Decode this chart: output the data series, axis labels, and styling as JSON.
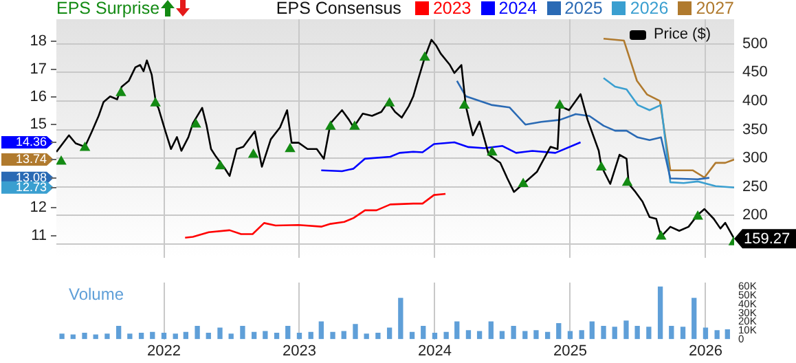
{
  "chart_data": [
    {
      "type": "line",
      "legend": "top",
      "legend_title": "EPS Consensus",
      "grid": true,
      "tick_labels": "y",
      "xlim": [
        "2021-03-17",
        "2026-03-19"
      ],
      "xticks": [
        "2022",
        "2023",
        "2024",
        "2025",
        "2026"
      ],
      "ylim": [
        10.2,
        18.8
      ],
      "yticks": [
        11,
        12,
        12.73,
        13.08,
        13.74,
        14.36,
        15,
        16,
        17,
        18
      ],
      "y2lim": [
        126,
        543
      ],
      "y2ticks": [
        {
          "value": 150,
          "label": null
        },
        200,
        250,
        300,
        350,
        400,
        450,
        500
      ],
      "series": [
        {
          "name": "EPS Surprise",
          "type": "scatter",
          "axis": "y2",
          "marker": "triangle",
          "color": "#138a13",
          "x": [
            "2021-03-30",
            "2021-06-02",
            "2021-09-07",
            "2021-12-09",
            "2022-03-28",
            "2022-06-02",
            "2022-08-30",
            "2022-12-07",
            "2023-03-26",
            "2023-05-30",
            "2023-09-01",
            "2023-12-05",
            "2024-03-21",
            "2024-06-04",
            "2024-08-27",
            "2024-12-04",
            "2025-03-26",
            "2025-06-04",
            "2025-09-03",
            "2025-12-11",
            "2026-03-18"
          ],
          "values": [
            294,
            318,
            414,
            396,
            359,
            286,
            306,
            316,
            355,
            355,
            396,
            476,
            392,
            310,
            255,
            392,
            284,
            257,
            163,
            198,
            153
          ]
        },
        {
          "name": "Price ($)",
          "axis": "y2",
          "color": "#000000",
          "x": [
            "2021-03-17",
            "2021-04-20",
            "2021-05-08",
            "2021-06-02",
            "2021-06-21",
            "2021-07-09",
            "2021-07-22",
            "2021-08-09",
            "2021-08-28",
            "2021-09-09",
            "2021-09-28",
            "2021-10-16",
            "2021-10-29",
            "2021-11-07",
            "2021-11-16",
            "2021-11-29",
            "2021-12-11",
            "2021-12-17",
            "2022-01-05",
            "2022-01-20",
            "2022-02-05",
            "2022-02-17",
            "2022-03-08",
            "2022-03-20",
            "2022-04-14",
            "2022-04-26",
            "2022-05-08",
            "2022-05-21",
            "2022-06-14",
            "2022-06-27",
            "2022-07-16",
            "2022-08-03",
            "2022-09-03",
            "2022-09-22",
            "2022-10-16",
            "2022-11-10",
            "2022-11-29",
            "2022-12-11",
            "2022-12-30",
            "2023-01-23",
            "2023-02-17",
            "2023-03-08",
            "2023-03-26",
            "2023-04-26",
            "2023-05-15",
            "2023-05-27",
            "2023-06-21",
            "2023-07-16",
            "2023-08-10",
            "2023-08-28",
            "2023-09-16",
            "2023-10-04",
            "2023-10-23",
            "2023-11-04",
            "2023-11-16",
            "2023-12-05",
            "2023-12-23",
            "2024-01-05",
            "2024-01-17",
            "2024-02-11",
            "2024-02-23",
            "2024-03-13",
            "2024-03-25",
            "2024-04-13",
            "2024-05-01",
            "2024-05-26",
            "2024-06-26",
            "2024-07-15",
            "2024-08-02",
            "2024-08-27",
            "2024-10-03",
            "2024-10-28",
            "2024-11-09",
            "2024-11-28",
            "2024-12-04",
            "2024-12-29",
            "2025-01-29",
            "2025-02-17",
            "2025-03-19",
            "2025-03-26",
            "2025-04-19",
            "2025-05-14",
            "2025-06-02",
            "2025-06-08",
            "2025-06-26",
            "2025-07-15",
            "2025-08-03",
            "2025-08-21",
            "2025-09-03",
            "2025-09-28",
            "2025-10-22",
            "2025-11-16",
            "2025-12-11",
            "2025-12-29",
            "2026-01-23",
            "2026-02-10",
            "2026-02-23",
            "2026-03-19"
          ],
          "values": [
            311,
            340,
            326,
            320,
            347,
            374,
            398,
            408,
            403,
            425,
            435,
            459,
            463,
            452,
            471,
            446,
            394,
            388,
            347,
            316,
            337,
            313,
            337,
            361,
            388,
            357,
            316,
            303,
            282,
            269,
            316,
            320,
            347,
            285,
            333,
            354,
            384,
            327,
            327,
            316,
            316,
            299,
            361,
            384,
            367,
            354,
            378,
            374,
            381,
            398,
            381,
            371,
            391,
            408,
            435,
            476,
            507,
            497,
            483,
            463,
            449,
            463,
            391,
            340,
            364,
            306,
            292,
            265,
            241,
            255,
            276,
            306,
            320,
            316,
            391,
            384,
            412,
            367,
            313,
            286,
            255,
            306,
            299,
            255,
            241,
            224,
            197,
            194,
            163,
            180,
            173,
            180,
            201,
            211,
            194,
            177,
            187,
            159.27
          ],
          "value_labels": [
            null,
            null,
            null,
            null,
            null,
            null,
            null,
            null,
            null,
            null,
            null,
            null,
            null,
            null,
            null,
            null,
            null,
            null,
            null,
            null,
            null,
            null,
            null,
            null,
            null,
            null,
            null,
            null,
            null,
            null,
            null,
            null,
            null,
            null,
            null,
            null,
            null,
            null,
            null,
            null,
            null,
            null,
            null,
            null,
            null,
            null,
            null,
            null,
            null,
            null,
            null,
            null,
            null,
            null,
            null,
            null,
            null,
            null,
            null,
            null,
            null,
            null,
            null,
            null,
            null,
            null,
            null,
            null,
            null,
            null,
            null,
            null,
            null,
            null,
            null,
            null,
            null,
            null,
            null,
            null,
            null,
            null,
            null,
            null,
            null,
            null,
            null,
            null,
            null,
            null,
            null,
            null,
            null,
            null,
            null,
            null,
            null,
            "159.27"
          ]
        },
        {
          "name": "2023",
          "color": "#ff0000",
          "x": [
            "2022-02-27",
            "2022-03-20",
            "2022-05-02",
            "2022-06-27",
            "2022-07-28",
            "2022-08-28",
            "2022-09-28",
            "2022-10-29",
            "2022-12-30",
            "2023-03-01",
            "2023-03-26",
            "2023-05-02",
            "2023-05-27",
            "2023-06-27",
            "2023-07-28",
            "2023-09-03",
            "2023-11-04",
            "2023-11-29",
            "2023-12-30",
            "2024-01-30"
          ],
          "values": [
            10.92,
            10.95,
            11.12,
            11.19,
            11.05,
            11.05,
            11.45,
            11.36,
            11.38,
            11.32,
            11.42,
            11.49,
            11.63,
            11.91,
            11.91,
            12.12,
            12.15,
            12.15,
            12.46,
            12.5
          ]
        },
        {
          "name": "2024",
          "color": "#0000ff",
          "x": [
            "2023-03-01",
            "2023-04-26",
            "2023-05-27",
            "2023-06-27",
            "2023-09-03",
            "2023-09-28",
            "2023-11-04",
            "2023-11-29",
            "2023-12-30",
            "2024-02-23",
            "2024-04-01",
            "2024-05-14",
            "2024-07-02",
            "2024-08-08",
            "2024-09-21",
            "2024-11-22",
            "2025-01-29"
          ],
          "values": [
            13.35,
            13.32,
            13.41,
            13.77,
            13.84,
            13.98,
            14.02,
            14.0,
            14.3,
            14.36,
            14.19,
            14.15,
            14.23,
            13.98,
            14.05,
            13.98,
            14.36
          ]
        },
        {
          "name": "2025",
          "color": "#2a6ab4",
          "x": [
            "2024-03-01",
            "2024-03-25",
            "2024-06-02",
            "2024-07-21",
            "2024-09-02",
            "2024-10-15",
            "2024-12-04",
            "2025-01-16",
            "2025-02-22",
            "2025-04-01",
            "2025-05-02",
            "2025-06-02",
            "2025-07-02",
            "2025-08-03",
            "2025-09-03",
            "2025-09-28",
            "2025-12-11",
            "2026-01-11"
          ],
          "values": [
            16.58,
            16.02,
            15.71,
            15.62,
            15.0,
            15.1,
            15.17,
            15.38,
            15.31,
            14.96,
            14.78,
            14.78,
            14.54,
            14.44,
            14.54,
            13.06,
            13.03,
            13.08
          ]
        },
        {
          "name": "2026",
          "color": "#3a9fd0",
          "x": [
            "2025-04-01",
            "2025-05-02",
            "2025-06-02",
            "2025-07-02",
            "2025-08-03",
            "2025-09-03",
            "2025-09-28",
            "2025-11-03",
            "2025-12-11",
            "2026-01-28",
            "2026-03-19"
          ],
          "values": [
            16.68,
            16.37,
            16.27,
            15.71,
            15.52,
            15.71,
            12.92,
            12.89,
            12.95,
            12.78,
            12.73
          ]
        },
        {
          "name": "2027",
          "color": "#b07a2e",
          "x": [
            "2025-04-01",
            "2025-05-26",
            "2025-06-30",
            "2025-07-27",
            "2025-08-31",
            "2025-09-28",
            "2025-11-28",
            "2025-12-29",
            "2026-01-28",
            "2026-02-23",
            "2026-03-19"
          ],
          "values": [
            18.1,
            18.03,
            16.58,
            16.09,
            15.85,
            13.35,
            13.35,
            13.09,
            13.62,
            13.62,
            13.74
          ]
        }
      ]
    },
    {
      "type": "bar",
      "grid": "x",
      "xlim": [
        "2021-03-17",
        "2026-03-19"
      ],
      "xticks": [
        "2022",
        "2023",
        "2024",
        "2025",
        "2026"
      ],
      "ylim": [
        0,
        65000
      ],
      "yticks": [
        0,
        {
          "value": 10000,
          "label": "10K"
        },
        {
          "value": 20000,
          "label": "20K"
        },
        {
          "value": 30000,
          "label": "30K"
        },
        {
          "value": 40000,
          "label": "40K"
        },
        {
          "value": 50000,
          "label": "50K"
        },
        {
          "value": 60000,
          "label": "60K"
        }
      ],
      "series": [
        {
          "name": "Volume",
          "color": "#5f9fd8",
          "x": [
            "2021-04",
            "2021-05",
            "2021-06",
            "2021-07",
            "2021-08",
            "2021-09",
            "2021-10",
            "2021-11",
            "2021-12",
            "2022-01",
            "2022-02",
            "2022-03",
            "2022-04",
            "2022-05",
            "2022-06",
            "2022-07",
            "2022-08",
            "2022-09",
            "2022-10",
            "2022-11",
            "2022-12",
            "2023-01",
            "2023-02",
            "2023-03",
            "2023-04",
            "2023-05",
            "2023-06",
            "2023-07",
            "2023-08",
            "2023-09",
            "2023-10",
            "2023-11",
            "2023-12",
            "2024-01",
            "2024-02",
            "2024-03",
            "2024-04",
            "2024-05",
            "2024-06",
            "2024-07",
            "2024-08",
            "2024-09",
            "2024-10",
            "2024-11",
            "2024-12",
            "2025-01",
            "2025-02",
            "2025-03",
            "2025-04",
            "2025-05",
            "2025-06",
            "2025-07",
            "2025-08",
            "2025-09",
            "2025-10",
            "2025-11",
            "2025-12",
            "2026-01",
            "2026-02",
            "2026-03"
          ],
          "values": [
            6000,
            5000,
            7000,
            5000,
            6000,
            15000,
            6000,
            7000,
            8000,
            7000,
            6000,
            8000,
            15000,
            7000,
            13000,
            6000,
            15000,
            8000,
            9000,
            7000,
            15000,
            7000,
            8000,
            20000,
            8000,
            9000,
            17000,
            6000,
            7000,
            13000,
            47000,
            8000,
            15000,
            7000,
            8000,
            20000,
            10000,
            9000,
            20000,
            9000,
            15000,
            9000,
            10000,
            8000,
            18000,
            9000,
            10000,
            20000,
            15000,
            14000,
            21000,
            15000,
            14000,
            60000,
            15000,
            14000,
            47000,
            13000,
            10000,
            11000
          ]
        }
      ]
    }
  ]
}
